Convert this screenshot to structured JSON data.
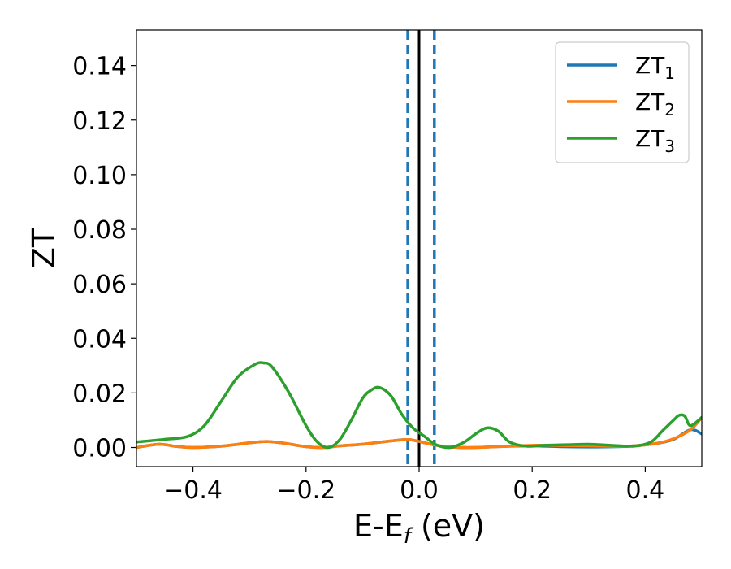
{
  "chart_data": {
    "type": "line",
    "title": "",
    "xlabel": {
      "main": "E-E",
      "sub": "f",
      "unit": " (eV)"
    },
    "ylabel": "ZT",
    "xlim": [
      -0.5,
      0.5
    ],
    "ylim": [
      -0.007,
      0.153
    ],
    "x_ticks": [
      -0.4,
      -0.2,
      0.0,
      0.2,
      0.4
    ],
    "x_tick_labels": [
      "−0.4",
      "−0.2",
      "0.0",
      "0.2",
      "0.4"
    ],
    "y_ticks": [
      0.0,
      0.02,
      0.04,
      0.06,
      0.08,
      0.1,
      0.12,
      0.14
    ],
    "y_tick_labels": [
      "0.00",
      "0.02",
      "0.04",
      "0.06",
      "0.08",
      "0.10",
      "0.12",
      "0.14"
    ],
    "grid": false,
    "legend_position": "top-right",
    "vlines": [
      {
        "x": 0.0,
        "color": "#000000",
        "style": "solid"
      },
      {
        "x": -0.02,
        "color": "#1f77b4",
        "style": "dashed"
      },
      {
        "x": 0.027,
        "color": "#1f77b4",
        "style": "dashed"
      }
    ],
    "series": [
      {
        "name": "ZT",
        "sub": "1",
        "color": "#1f77b4",
        "x": [
          -0.5,
          -0.46,
          -0.43,
          -0.4,
          -0.35,
          -0.3,
          -0.27,
          -0.24,
          -0.2,
          -0.17,
          -0.14,
          -0.1,
          -0.05,
          -0.02,
          0.0,
          0.03,
          0.06,
          0.1,
          0.15,
          0.2,
          0.25,
          0.3,
          0.35,
          0.38,
          0.42,
          0.45,
          0.48,
          0.5
        ],
        "y": [
          0.0,
          0.0012,
          0.0004,
          0.0,
          0.0005,
          0.0017,
          0.0022,
          0.0016,
          0.0003,
          0.0,
          0.0006,
          0.0012,
          0.0024,
          0.0029,
          0.0022,
          0.0008,
          0.0001,
          0.0,
          0.0004,
          0.0006,
          0.0003,
          0.0002,
          0.0003,
          0.0006,
          0.0015,
          0.003,
          0.0065,
          0.005
        ]
      },
      {
        "name": "ZT",
        "sub": "2",
        "color": "#ff7f0e",
        "x": [
          -0.5,
          -0.46,
          -0.43,
          -0.4,
          -0.35,
          -0.3,
          -0.27,
          -0.24,
          -0.2,
          -0.17,
          -0.14,
          -0.1,
          -0.05,
          -0.02,
          0.0,
          0.03,
          0.06,
          0.1,
          0.15,
          0.2,
          0.25,
          0.3,
          0.35,
          0.38,
          0.42,
          0.45,
          0.48,
          0.5
        ],
        "y": [
          0.0,
          0.0012,
          0.0004,
          0.0,
          0.0005,
          0.0017,
          0.0022,
          0.0016,
          0.0003,
          0.0,
          0.0006,
          0.0012,
          0.0024,
          0.0029,
          0.0022,
          0.0008,
          0.0001,
          0.0,
          0.0004,
          0.0008,
          0.0007,
          0.0006,
          0.0004,
          0.0006,
          0.0015,
          0.0032,
          0.0065,
          0.011
        ]
      },
      {
        "name": "ZT",
        "sub": "3",
        "color": "#2ca02c",
        "x": [
          -0.5,
          -0.45,
          -0.41,
          -0.38,
          -0.35,
          -0.32,
          -0.29,
          -0.275,
          -0.26,
          -0.23,
          -0.2,
          -0.18,
          -0.16,
          -0.14,
          -0.12,
          -0.1,
          -0.085,
          -0.07,
          -0.05,
          -0.03,
          -0.01,
          0.01,
          0.03,
          0.055,
          0.08,
          0.1,
          0.12,
          0.14,
          0.16,
          0.19,
          0.22,
          0.26,
          0.3,
          0.34,
          0.38,
          0.41,
          0.43,
          0.45,
          0.46,
          0.47,
          0.48,
          0.5
        ],
        "y": [
          0.002,
          0.003,
          0.004,
          0.008,
          0.017,
          0.026,
          0.0305,
          0.031,
          0.0295,
          0.02,
          0.008,
          0.002,
          0.0,
          0.003,
          0.01,
          0.018,
          0.021,
          0.022,
          0.019,
          0.012,
          0.007,
          0.004,
          0.001,
          0.0,
          0.002,
          0.005,
          0.0072,
          0.006,
          0.002,
          0.0005,
          0.0008,
          0.001,
          0.0012,
          0.0008,
          0.0005,
          0.002,
          0.006,
          0.01,
          0.0118,
          0.0115,
          0.008,
          0.011
        ]
      }
    ]
  }
}
